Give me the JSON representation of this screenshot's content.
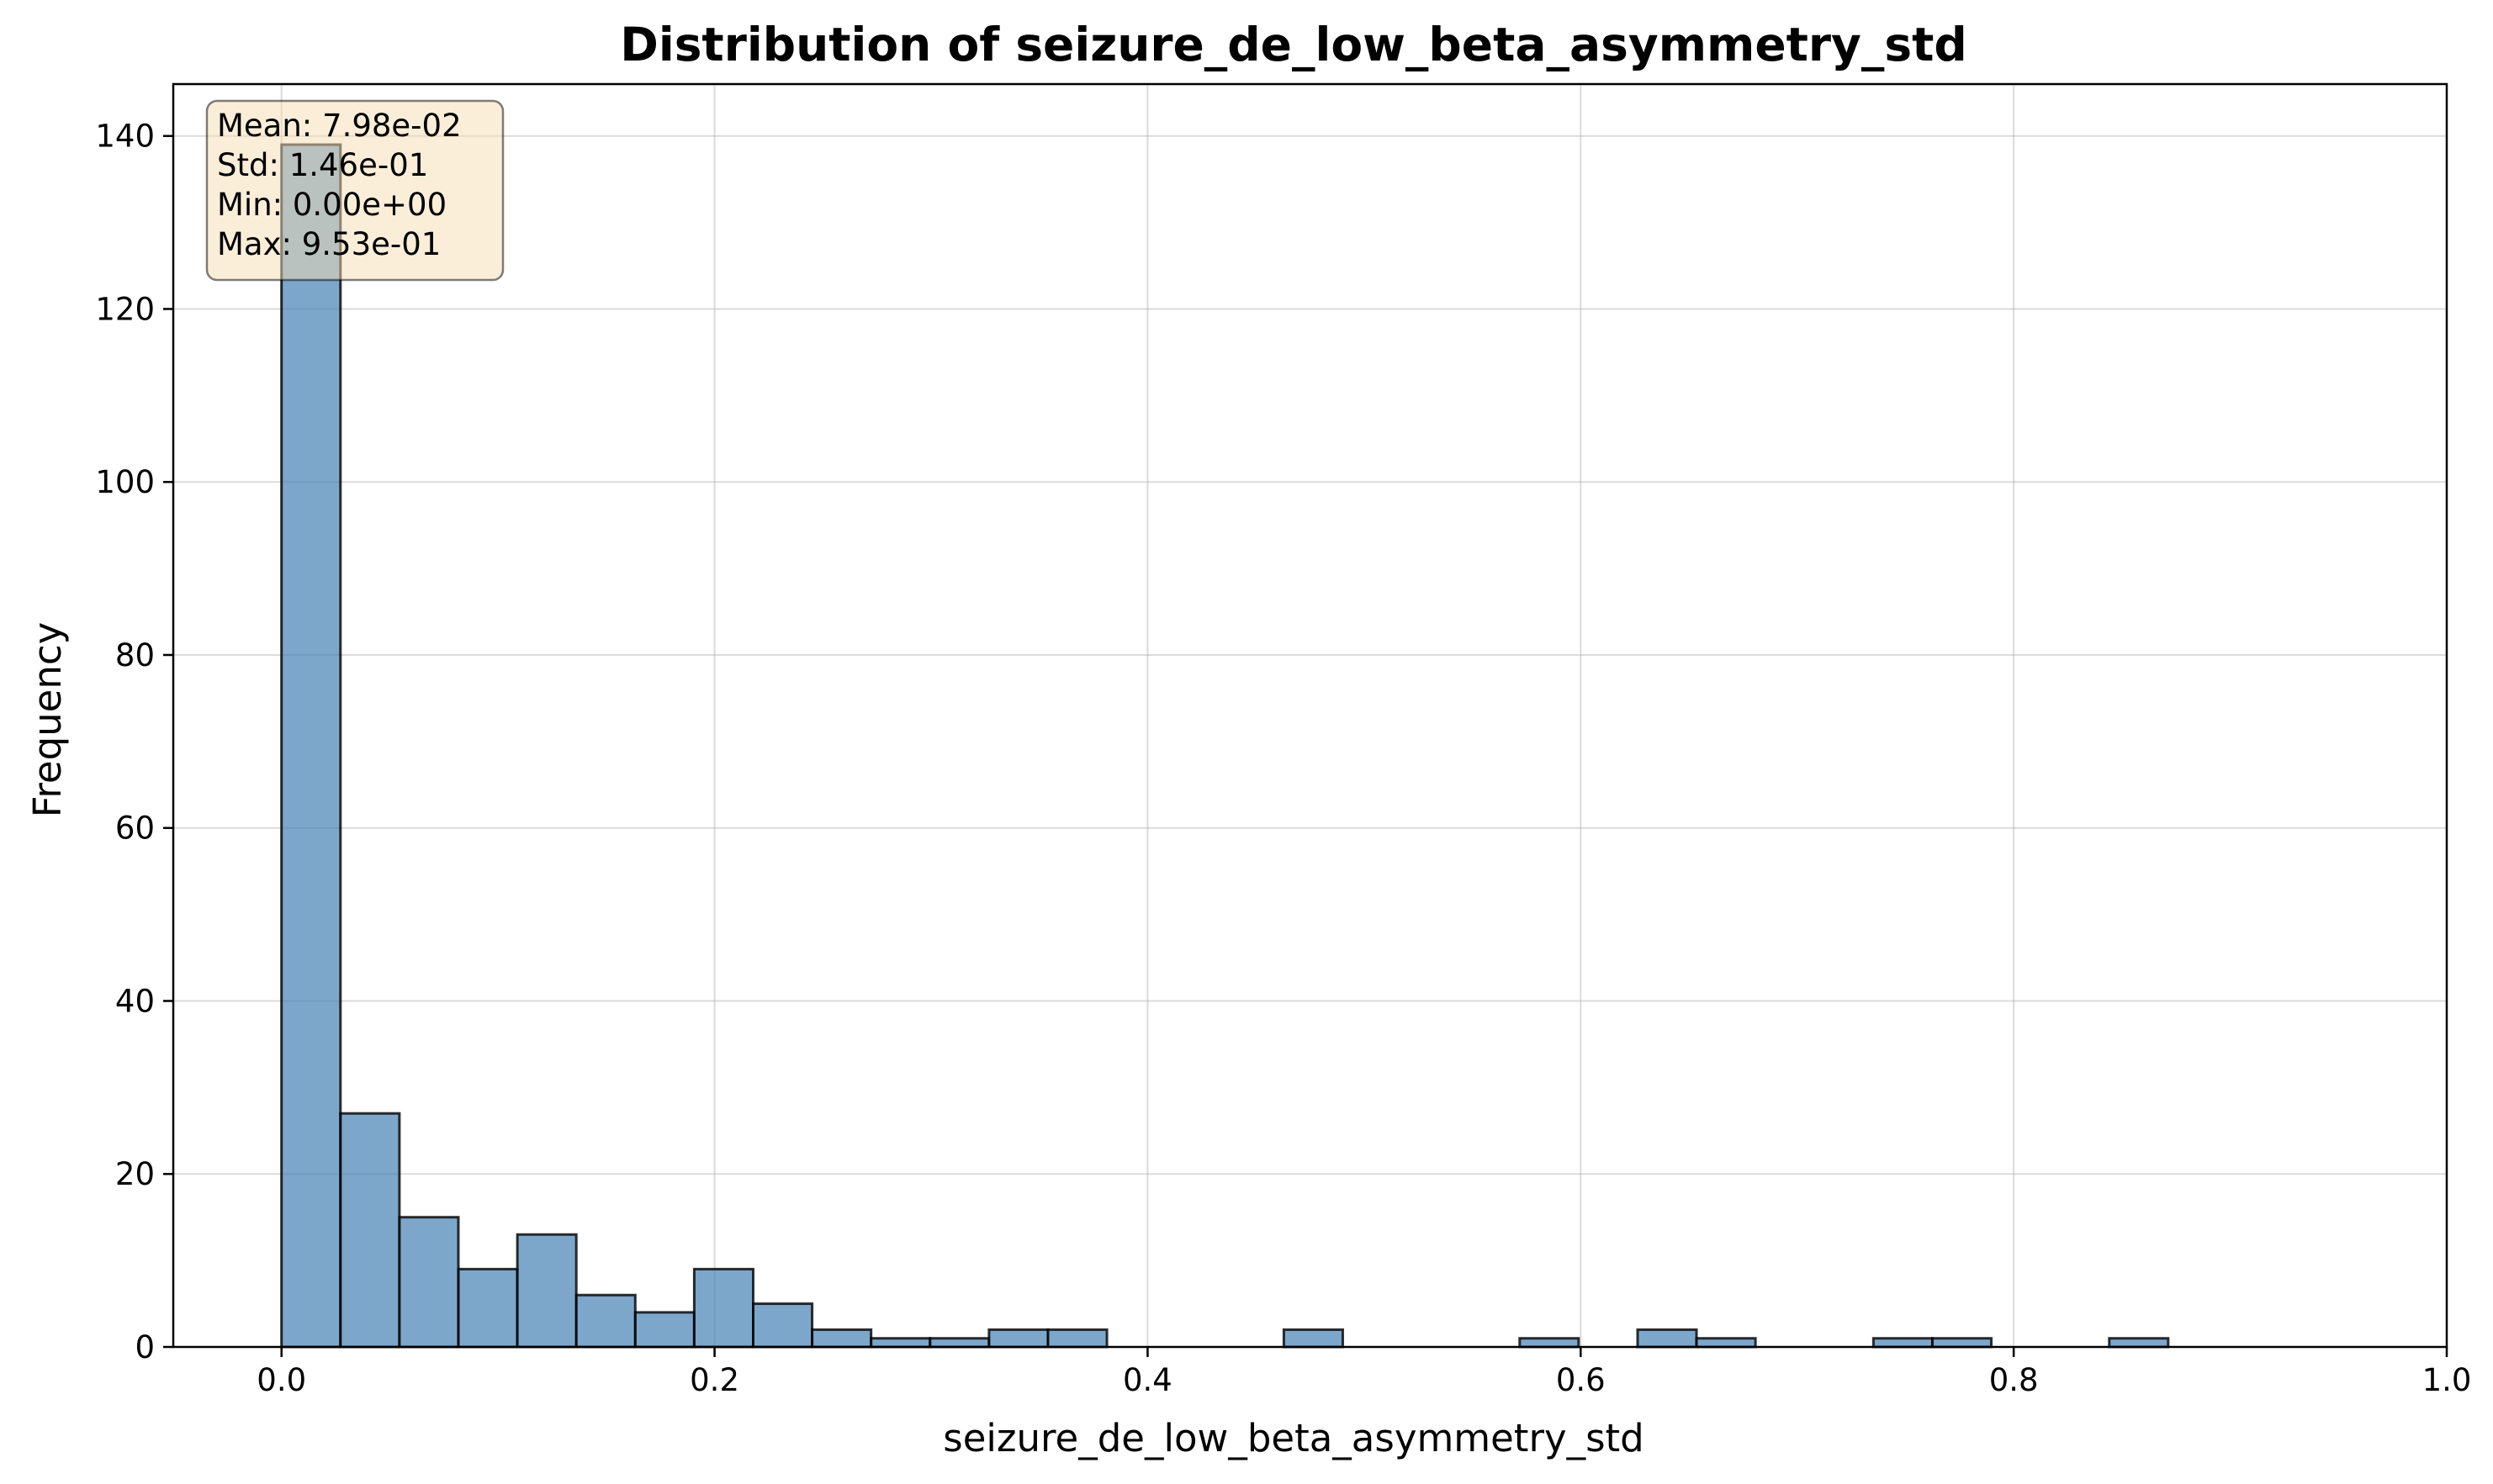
{
  "chart_data": {
    "type": "bar",
    "title": "Distribution of seizure_de_low_beta_asymmetry_std",
    "xlabel": "seizure_de_low_beta_asymmetry_std",
    "ylabel": "Frequency",
    "xlim": [
      -0.05,
      1.0
    ],
    "ylim": [
      0,
      146
    ],
    "x_ticks": [
      0.0,
      0.2,
      0.4,
      0.6,
      0.8,
      1.0
    ],
    "x_tick_labels": [
      "0.0",
      "0.2",
      "0.4",
      "0.6",
      "0.8",
      "1.0"
    ],
    "y_ticks": [
      0,
      20,
      40,
      60,
      80,
      100,
      120,
      140
    ],
    "y_tick_labels": [
      "0",
      "20",
      "40",
      "60",
      "80",
      "100",
      "120",
      "140"
    ],
    "grid": true,
    "bar_color": "#4682b4",
    "bin_edges_start": 0.0,
    "bin_width": 0.02723,
    "counts": [
      139,
      27,
      15,
      9,
      13,
      6,
      4,
      9,
      5,
      2,
      1,
      1,
      2,
      2,
      0,
      0,
      0,
      2,
      0,
      0,
      0,
      1,
      0,
      2,
      1,
      0,
      0,
      1,
      1,
      0,
      0,
      1,
      0,
      0,
      0
    ],
    "stats": {
      "lines": [
        "Mean: 7.98e-02",
        "Std: 1.46e-01",
        "Min: 0.00e+00",
        "Max: 9.53e-01"
      ],
      "placement": "top-left",
      "box_color": "#f5deb3"
    }
  }
}
